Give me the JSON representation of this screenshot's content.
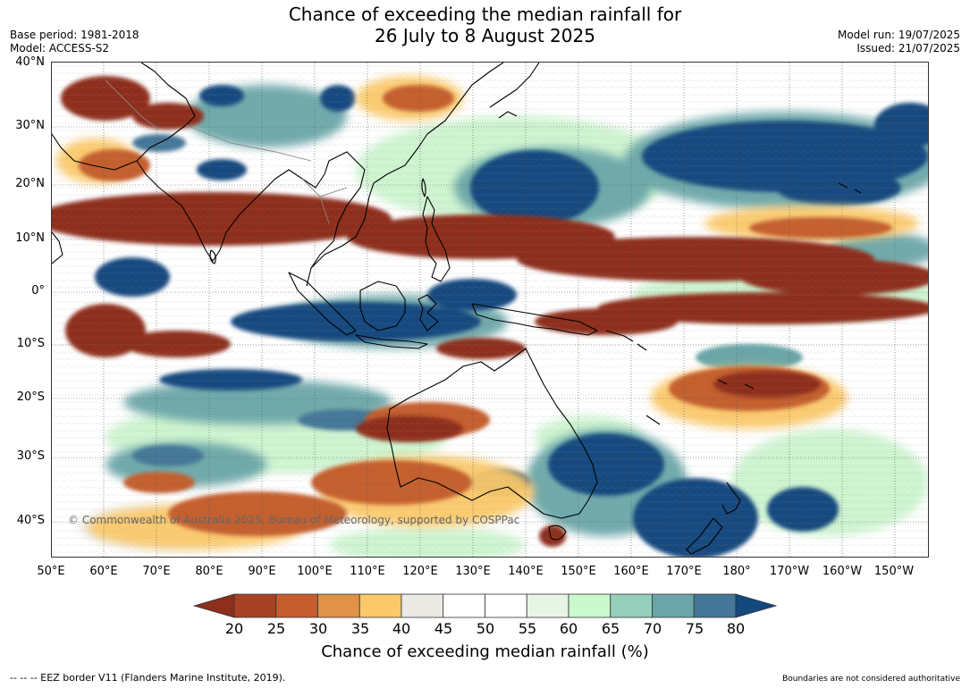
{
  "title": {
    "line1": "Chance of exceeding the median rainfall for",
    "line2": "26 July to 8 August 2025"
  },
  "meta": {
    "base_period": "Base period: 1981-2018",
    "model": "Model: ACCESS-S2",
    "model_run": "Model run: 19/07/2025",
    "issued": "Issued: 21/07/2025"
  },
  "map": {
    "latitude_labels": [
      "40°N",
      "30°N",
      "20°N",
      "10°N",
      "0°",
      "10°S",
      "20°S",
      "30°S",
      "40°S"
    ],
    "longitude_labels": [
      "50°E",
      "60°E",
      "70°E",
      "80°E",
      "90°E",
      "100°E",
      "110°E",
      "120°E",
      "130°E",
      "140°E",
      "150°E",
      "160°E",
      "170°E",
      "180°",
      "170°W",
      "160°W",
      "150°W"
    ],
    "copyright": "© Commonwealth of Australia 2025, Bureau of Meteorology, supported by COSPPac",
    "colors": {
      "very_dry": "#8e2e1c",
      "dry": "#c45e2e",
      "slightly_dry": "#f3c56c",
      "neutral": "#ffffff",
      "slightly_wet": "#c9f3cc",
      "wet": "#6aa6a8",
      "very_wet": "#13497f",
      "coastline": "#000000",
      "border": "#888888"
    }
  },
  "colorbar": {
    "ticks": [
      "20",
      "25",
      "30",
      "35",
      "40",
      "45",
      "50",
      "55",
      "60",
      "65",
      "70",
      "75",
      "80"
    ],
    "colors": [
      "#8e2e1c",
      "#a84224",
      "#c45e2e",
      "#e0924a",
      "#fbc96b",
      "#ebe9e4",
      "#ffffff",
      "#ffffff",
      "#e8f5e6",
      "#c9f9cc",
      "#96cfbb",
      "#6aa6a8",
      "#457798",
      "#13497f"
    ],
    "title": "Chance of exceeding median rainfall (%)"
  },
  "footer": {
    "eez": "--  --  -- EEZ border V11 (Flanders Marine Institute, 2019).",
    "disclaimer": "Boundaries are not considered authoritative"
  }
}
